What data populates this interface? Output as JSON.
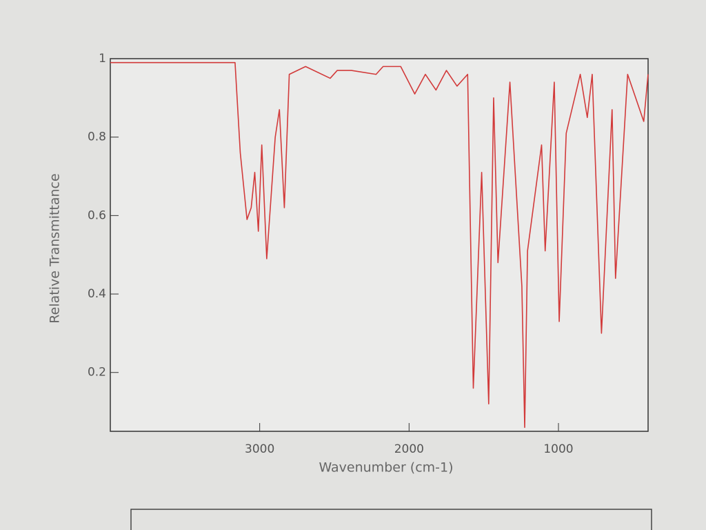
{
  "chart_data": {
    "type": "line",
    "xlabel": "Wavenumber (cm-1)",
    "ylabel": "Relative Transmittance",
    "xlim": [
      4000,
      400
    ],
    "ylim": [
      0.05,
      1
    ],
    "xticks": [
      3000,
      2000,
      1000
    ],
    "yticks": [
      1,
      0.8,
      0.6,
      0.4,
      0.2
    ],
    "grid": false,
    "x": [
      4000,
      3165,
      3130,
      3085,
      3057,
      3033,
      3009,
      2986,
      2953,
      2929,
      2896,
      2868,
      2835,
      2802,
      2693,
      2528,
      2481,
      2386,
      2221,
      2174,
      2056,
      1962,
      1891,
      1820,
      1750,
      1679,
      1608,
      1570,
      1514,
      1467,
      1434,
      1405,
      1325,
      1245,
      1226,
      1207,
      1113,
      1089,
      1028,
      995,
      948,
      854,
      807,
      774,
      712,
      641,
      618,
      537,
      429,
      400
    ],
    "series": [
      {
        "color": "#d23a3a",
        "values": [
          0.99,
          0.99,
          0.76,
          0.59,
          0.62,
          0.71,
          0.56,
          0.78,
          0.49,
          0.62,
          0.8,
          0.87,
          0.62,
          0.96,
          0.98,
          0.95,
          0.97,
          0.97,
          0.96,
          0.98,
          0.98,
          0.91,
          0.96,
          0.92,
          0.97,
          0.93,
          0.96,
          0.16,
          0.71,
          0.12,
          0.9,
          0.48,
          0.94,
          0.42,
          0.06,
          0.51,
          0.78,
          0.51,
          0.94,
          0.33,
          0.81,
          0.96,
          0.85,
          0.96,
          0.3,
          0.87,
          0.44,
          0.96,
          0.84,
          0.96
        ]
      }
    ]
  }
}
